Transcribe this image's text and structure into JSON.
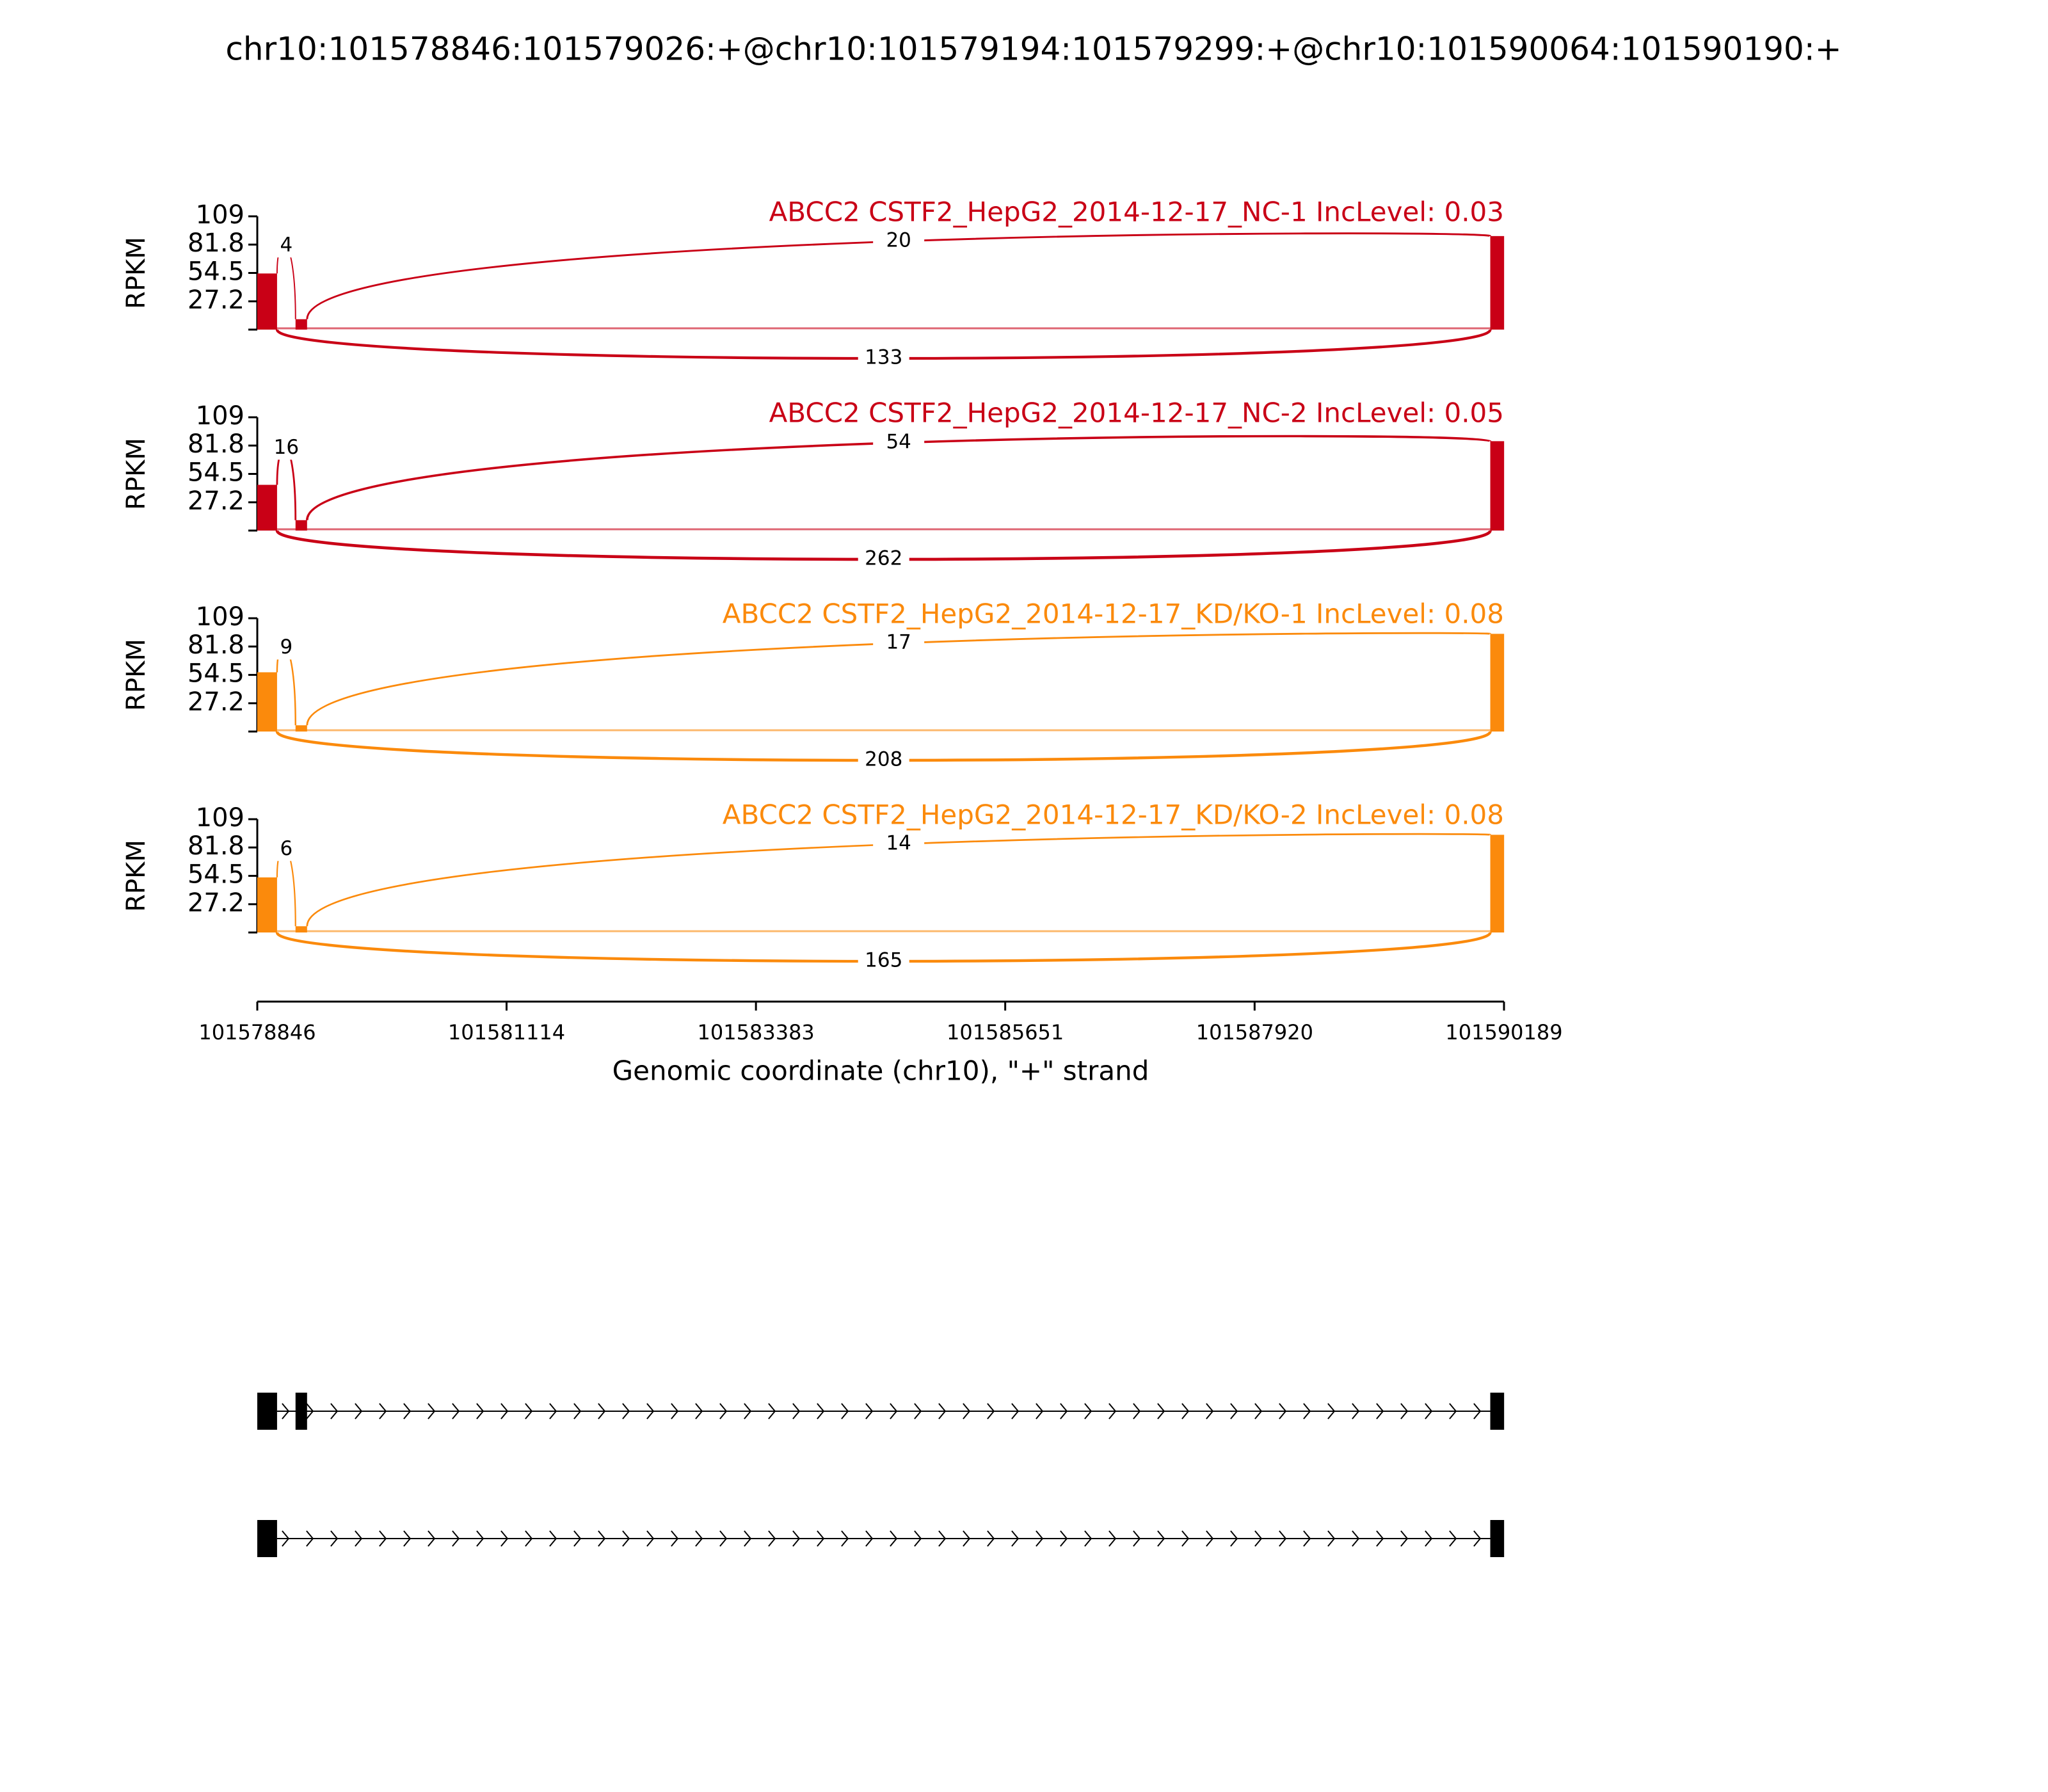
{
  "chart_data": {
    "type": "sashimi",
    "title": "chr10:101578846:101579026:+@chr10:101579194:101579299:+@chr10:101590064:101590190:+",
    "xlabel": "Genomic coordinate (chr10), \"+\" strand",
    "ylabel": "RPKM",
    "xlim": [
      101578846,
      101590189
    ],
    "xticks": [
      101578846,
      101581114,
      101583383,
      101585651,
      101587920,
      101590189
    ],
    "ylim": [
      0,
      109
    ],
    "yticks": [
      27.2,
      54.5,
      81.8,
      109
    ],
    "exons": [
      [
        101578846,
        101579026
      ],
      [
        101579194,
        101579299
      ],
      [
        101590064,
        101590190
      ]
    ],
    "isoforms": [
      [
        [
          101578846,
          101579026
        ],
        [
          101579194,
          101579299
        ],
        [
          101590064,
          101590190
        ]
      ],
      [
        [
          101578846,
          101579026
        ],
        [
          101590064,
          101590190
        ]
      ]
    ],
    "series": [
      {
        "name": "ABCC2 CSTF2_HepG2_2014-12-17_NC-1 IncLevel: 0.03",
        "color": "#c90016",
        "exon_coverage": [
          54,
          10,
          90
        ],
        "junctions": [
          {
            "start": 101579026,
            "end": 101579194,
            "count": 4
          },
          {
            "start": 101579299,
            "end": 101590064,
            "count": 20
          },
          {
            "start": 101579026,
            "end": 101590064,
            "count": 133
          }
        ]
      },
      {
        "name": "ABCC2 CSTF2_HepG2_2014-12-17_NC-2 IncLevel: 0.05",
        "color": "#c90016",
        "exon_coverage": [
          44,
          10,
          86
        ],
        "junctions": [
          {
            "start": 101579026,
            "end": 101579194,
            "count": 16
          },
          {
            "start": 101579299,
            "end": 101590064,
            "count": 54
          },
          {
            "start": 101579026,
            "end": 101590064,
            "count": 262
          }
        ]
      },
      {
        "name": "ABCC2 CSTF2_HepG2_2014-12-17_KD/KO-1 IncLevel: 0.08",
        "color": "#fb8a0c",
        "exon_coverage": [
          57,
          6,
          94
        ],
        "junctions": [
          {
            "start": 101579026,
            "end": 101579194,
            "count": 9
          },
          {
            "start": 101579299,
            "end": 101590064,
            "count": 17
          },
          {
            "start": 101579026,
            "end": 101590064,
            "count": 208
          }
        ]
      },
      {
        "name": "ABCC2 CSTF2_HepG2_2014-12-17_KD/KO-2 IncLevel: 0.08",
        "color": "#fb8a0c",
        "exon_coverage": [
          53,
          6,
          94
        ],
        "junctions": [
          {
            "start": 101579026,
            "end": 101579194,
            "count": 6
          },
          {
            "start": 101579299,
            "end": 101590064,
            "count": 14
          },
          {
            "start": 101579026,
            "end": 101590064,
            "count": 165
          }
        ]
      }
    ]
  }
}
